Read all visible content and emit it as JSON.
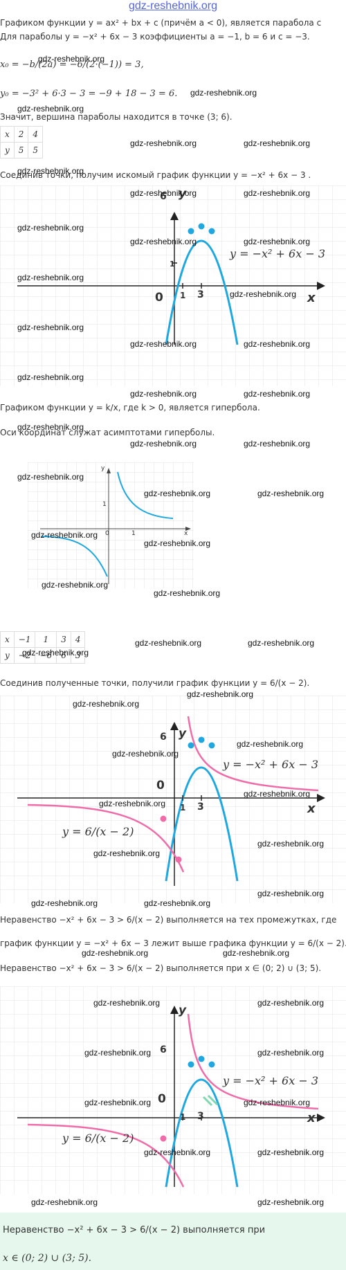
{
  "header": {
    "site": "gdz-reshebnik.org"
  },
  "text": {
    "l1": "Графиком функции y = ax² + bx + c (причём a < 0), является парабола с",
    "l2": "Для параболы y = −x² + 6x − 3  коэффициенты a = −1, b = 6 и c = −3.",
    "l3": "x₀ = −b/(2a) = −6/(2·(−1)) = 3,",
    "l4": "y₀ = −3² + 6·3 − 3 = −9 + 18 − 3 = 6.",
    "l5": "Значит, вершина параболы находится в точке (3; 6).",
    "l6": "Соединив точки, получим искомый график функции y = −x² + 6x − 3 .",
    "l7": "Графиком функции y = k/x, где k > 0, является гипербола.",
    "l8": "Оси координат служат асимптотами гиперболы.",
    "l9": "Соединив полученные точки, получили график функции y = 6/(x − 2).",
    "l10": "Неравенство −x² + 6x − 3 > 6/(x − 2) выполняется на тех промежутках, где",
    "l11": "график функции y = −x² + 6x − 3 лежит выше графика функции y = 6/(x − 2).",
    "l12": "Неравенство −x² + 6x − 3 > 6/(x − 2) выполняется при x ∈ (0; 2) ∪ (3; 5).",
    "p1": "Неравенство −x² + 6x − 3 > 6/(x − 2) выполняется при",
    "p2": "x ∈ (0; 2) ∪ (3; 5)."
  },
  "table1": {
    "rows": [
      [
        "x",
        "2",
        "4"
      ],
      [
        "y",
        "5",
        "5"
      ]
    ]
  },
  "table2": {
    "rows": [
      [
        "x",
        "−1",
        "1",
        "3",
        "4"
      ],
      [
        "y",
        "−2",
        "−6",
        "6",
        "3"
      ]
    ]
  },
  "graph_labels": {
    "x": "x",
    "y": "y",
    "zero": "0",
    "one": "1",
    "three": "3",
    "six": "6",
    "parabola": "y = −x² + 6x − 3",
    "hyperbola": "y = 6/(x − 2)"
  },
  "small_graph": {
    "x": "x",
    "y": "y",
    "zero": "0",
    "one": "1"
  },
  "watermark": "gdz-reshebnik.org",
  "colors": {
    "parabola": "#1fa8e0",
    "hyperbola": "#f06ca8",
    "grid": "#e3e3e3",
    "panel": "#e6f7ee",
    "hatch": "#7fd6b0"
  }
}
